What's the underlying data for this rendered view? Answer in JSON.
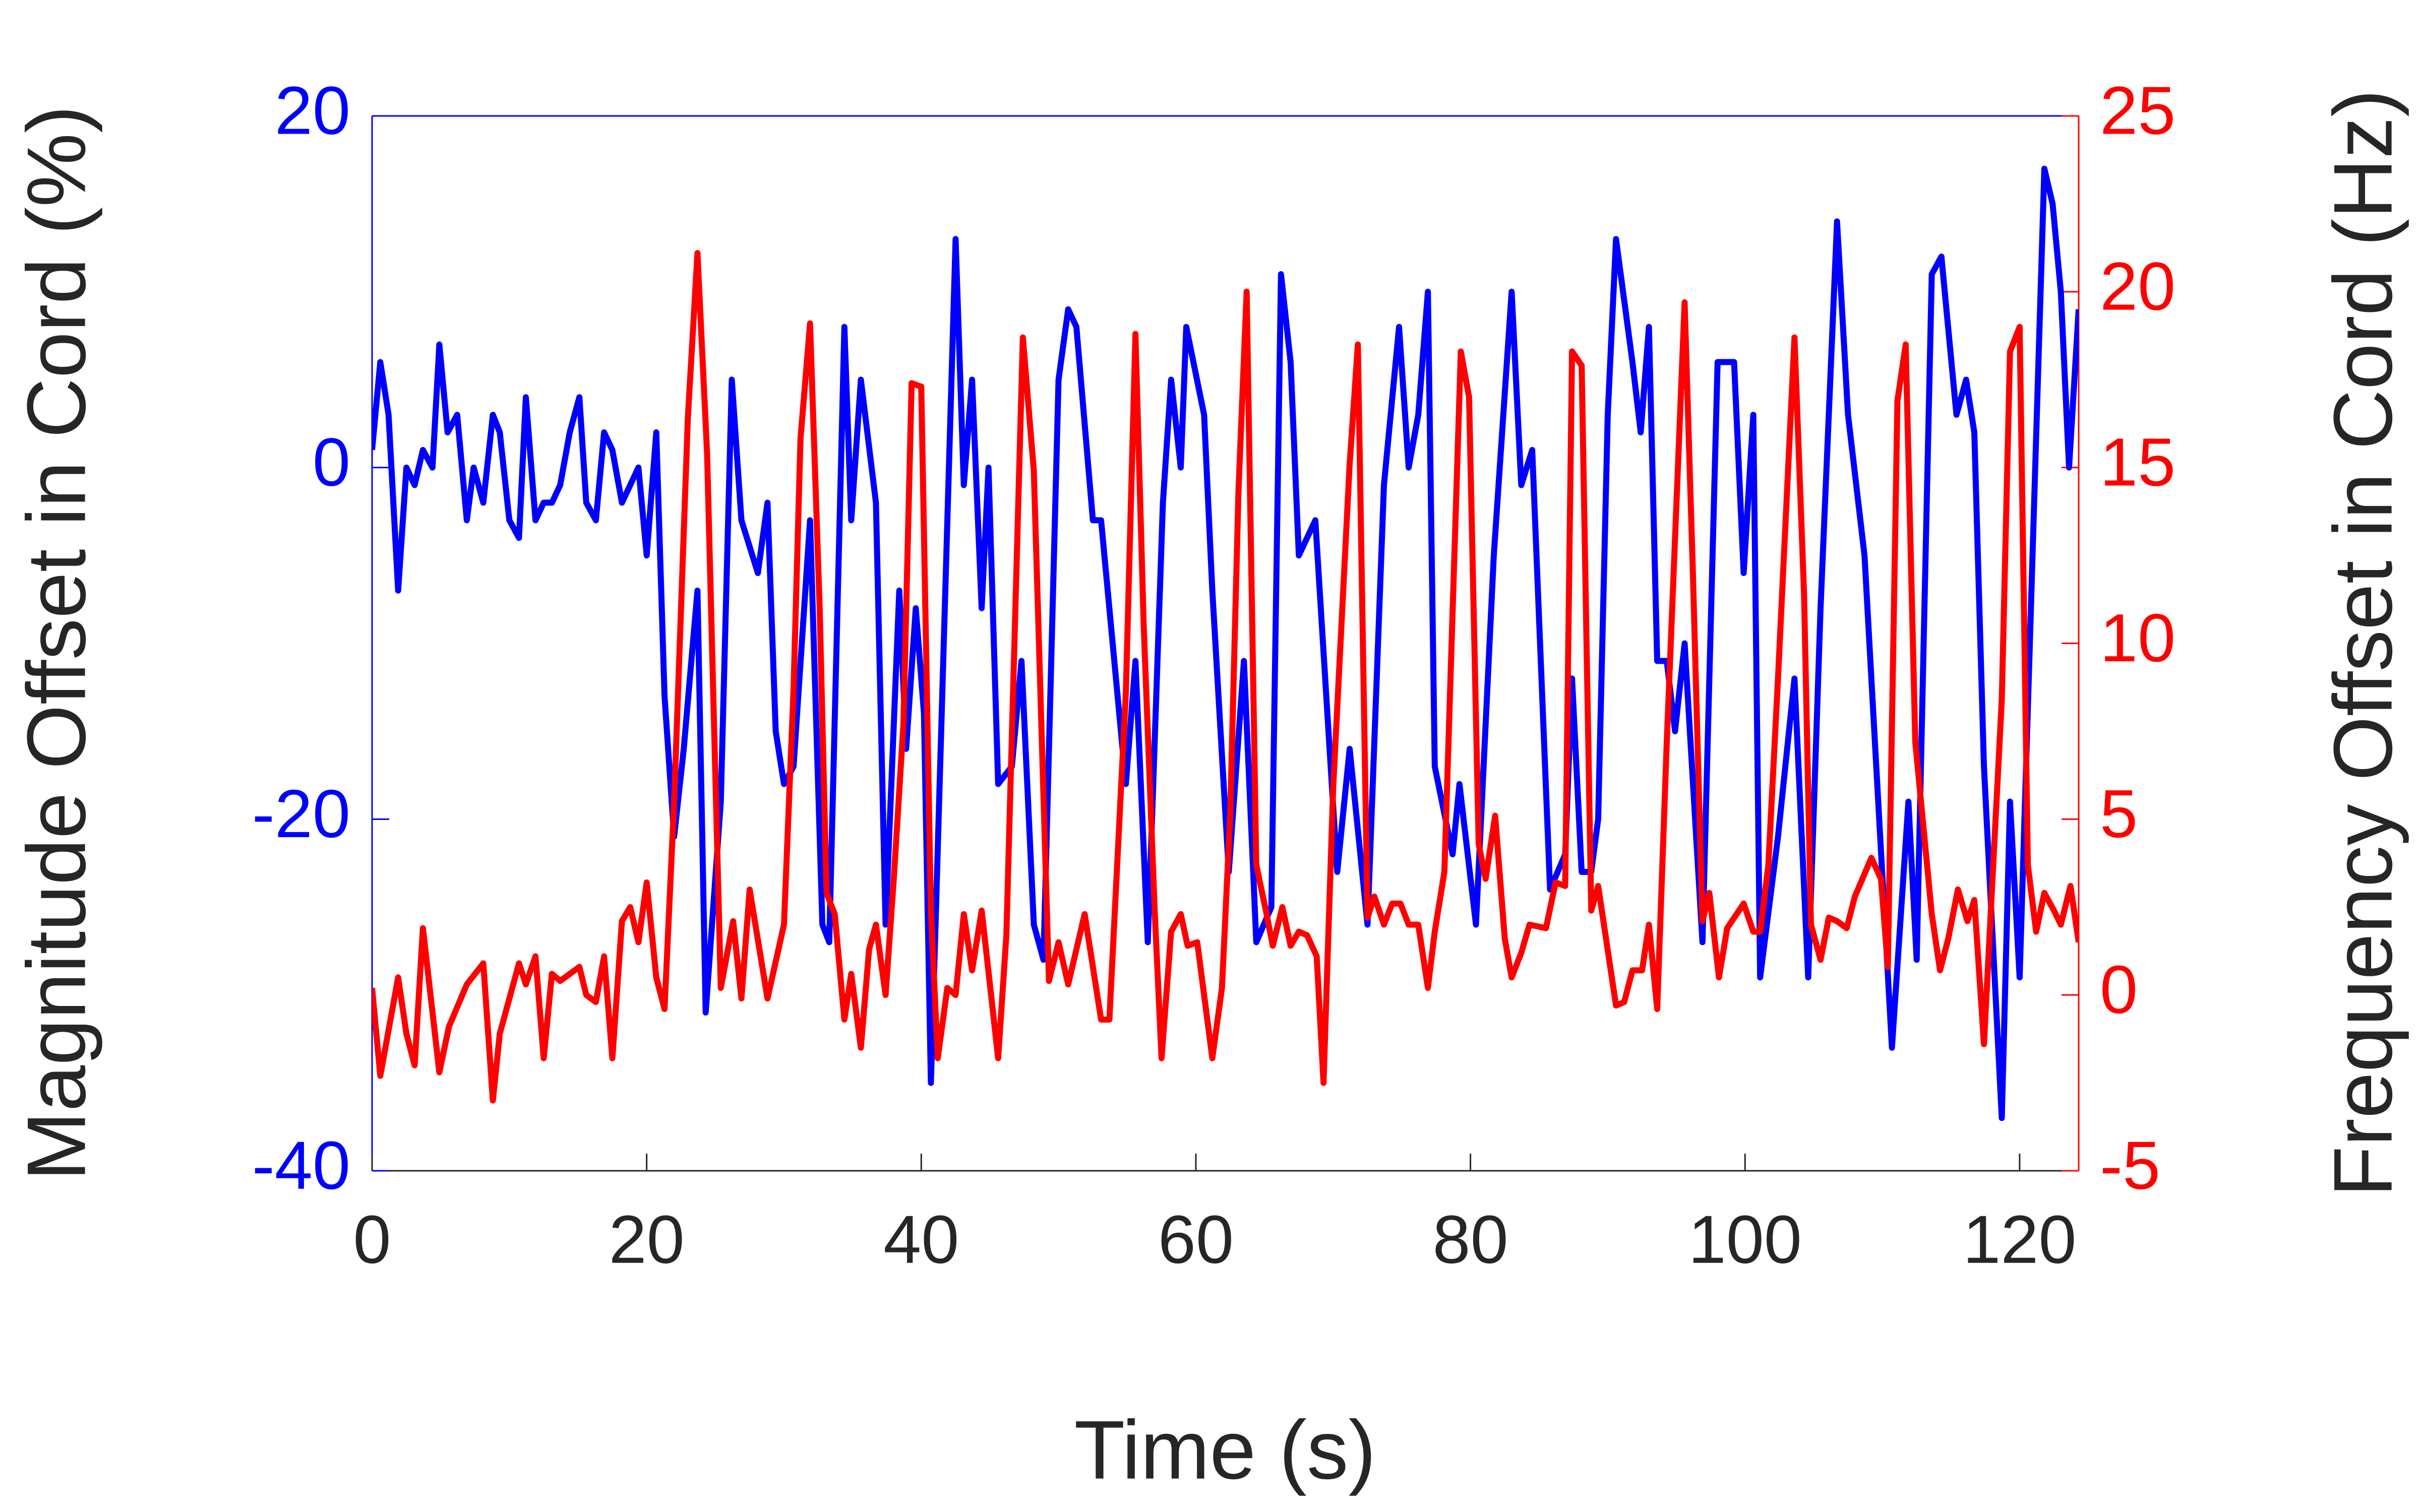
{
  "chart_data": {
    "type": "line",
    "xlabel": "Time (s)",
    "ylabel": "Magnitude Offset in Cord (%)",
    "y2label": "Frequency Offset in Cord (Hz)",
    "xlim": [
      0,
      124.3
    ],
    "xticks": [
      0,
      20,
      40,
      60,
      80,
      100,
      120
    ],
    "ylim": [
      -40,
      20
    ],
    "yticks": [
      -40,
      -20,
      0,
      20
    ],
    "y2lim": [
      -5,
      25
    ],
    "y2ticks": [
      -5,
      0,
      5,
      10,
      15,
      20,
      25
    ],
    "series": [
      {
        "color": "#0000ff",
        "axis": "y",
        "x": [
          0,
          0.6,
          1.2,
          1.9,
          2.5,
          3.1,
          3.7,
          4.4,
          4.9,
          5.5,
          6.2,
          6.9,
          7.4,
          8.1,
          8.8,
          9.3,
          10,
          10.7,
          11.2,
          11.9,
          12.5,
          13.1,
          13.7,
          14.4,
          15.1,
          15.6,
          16.3,
          16.9,
          17.5,
          18.2,
          18.8,
          19.4,
          20,
          20.7,
          21.3,
          22,
          22.7,
          23.7,
          24.3,
          25.4,
          26.2,
          26.9,
          28.1,
          28.8,
          29.4,
          30,
          30.7,
          31.9,
          32.8,
          33.3,
          34.4,
          34.9,
          35.6,
          36.7,
          37.4,
          38.4,
          38.9,
          39.6,
          40.2,
          40.7,
          42.5,
          43.1,
          43.7,
          44.4,
          44.9,
          45.6,
          46.6,
          47.3,
          48.2,
          48.9,
          50,
          50.7,
          51.3,
          52.5,
          53.1,
          54.9,
          55.6,
          56.5,
          57.6,
          58.2,
          58.9,
          59.3,
          60.6,
          61.2,
          62.4,
          63.5,
          64.4,
          65.5,
          66.2,
          66.9,
          67.5,
          68.7,
          70.3,
          71.2,
          72.5,
          73.7,
          74.8,
          75.5,
          76.2,
          76.9,
          77.4,
          78.7,
          79.2,
          80.4,
          81.7,
          83,
          83.7,
          84.5,
          85.8,
          86.9,
          87.4,
          88.1,
          88.8,
          89.3,
          90,
          90.6,
          91.8,
          92.4,
          93,
          93.6,
          94.3,
          94.9,
          95.6,
          96.9,
          98,
          99.2,
          99.9,
          100.6,
          101.1,
          102.4,
          103.6,
          104.6,
          105.5,
          106.7,
          107.5,
          108.7,
          110.7,
          111.9,
          112.5,
          113.6,
          114.3,
          115.4,
          116.1,
          116.7,
          117.4,
          118.7,
          119.3,
          120,
          121.8,
          122.4,
          123,
          123.6,
          124.3
        ],
        "values": [
          1,
          6,
          3,
          -7,
          0,
          -1,
          1,
          0,
          7,
          2,
          3,
          -3,
          0,
          -2,
          3,
          2,
          -3,
          -4,
          4,
          -3,
          -2,
          -2,
          -1,
          2,
          4,
          -2,
          -3,
          2,
          1,
          -2,
          -1,
          0,
          -5,
          2,
          -13,
          -21,
          -16,
          -7,
          -31,
          -19,
          5,
          -3,
          -6,
          -2,
          -15,
          -18,
          -17,
          -3,
          -26,
          -27,
          8,
          -3,
          5,
          -2,
          -26,
          -7,
          -16,
          -8,
          -14,
          -35,
          13,
          -1,
          5,
          -8,
          0,
          -18,
          -17,
          -11,
          -26,
          -28,
          5,
          9,
          8,
          -3,
          -3,
          -18,
          -11,
          -27,
          -2,
          5,
          0,
          8,
          3,
          -7,
          -23,
          -11,
          -27,
          -25,
          11,
          6,
          -5,
          -3,
          -23,
          -16,
          -26,
          -1,
          8,
          0,
          3,
          10,
          -17,
          -22,
          -18,
          -26,
          -5,
          10,
          -1,
          1,
          -24,
          -22,
          -12,
          -23,
          -23,
          -20,
          3,
          13,
          6,
          2,
          8,
          -11,
          -11,
          -15,
          -10,
          -27,
          6,
          6,
          -6,
          3,
          -29,
          -21,
          -12,
          -29,
          -8,
          14,
          3,
          -5,
          -33,
          -19,
          -28,
          11,
          12,
          3,
          5,
          2,
          -17,
          -37,
          -19,
          -29,
          17,
          15,
          10,
          0,
          9
        ]
      },
      {
        "color": "#ff0000",
        "axis": "y2",
        "x": [
          0,
          0.6,
          1.9,
          2.5,
          3.1,
          3.7,
          4.9,
          5.6,
          6.9,
          8.1,
          8.8,
          9.3,
          10.7,
          11.2,
          11.9,
          12.5,
          13.1,
          13.7,
          15.1,
          15.6,
          16.3,
          16.9,
          17.5,
          18.2,
          18.8,
          19.4,
          20,
          20.7,
          21.3,
          22,
          23,
          23.7,
          24.4,
          25.4,
          26.3,
          26.9,
          27.5,
          28.8,
          30,
          30.7,
          31.2,
          31.9,
          32.6,
          33.1,
          33.7,
          34.4,
          34.9,
          35.6,
          36.2,
          36.7,
          37.4,
          38,
          38.7,
          39.3,
          40,
          40.7,
          41.2,
          41.9,
          42.5,
          43.1,
          43.7,
          44.4,
          45.6,
          46.2,
          47.4,
          48.2,
          49.3,
          50,
          50.7,
          51.9,
          53.1,
          53.7,
          54.9,
          55.6,
          56.2,
          57,
          57.5,
          58.2,
          58.9,
          59.4,
          60.1,
          61.2,
          61.9,
          62.5,
          63.1,
          63.7,
          64.4,
          65.1,
          65.6,
          66.3,
          66.9,
          67.5,
          68.1,
          68.8,
          69.3,
          70,
          71.2,
          71.8,
          72.5,
          73,
          73.7,
          74.3,
          74.9,
          75.5,
          76.2,
          76.9,
          77.4,
          78.1,
          79.3,
          79.9,
          80.6,
          81.1,
          81.8,
          82.5,
          83,
          83.7,
          84.3,
          85.5,
          86.2,
          86.9,
          87.4,
          88.1,
          88.8,
          89.3,
          90.6,
          91.2,
          91.8,
          92.5,
          93,
          93.6,
          94.3,
          95.6,
          96.2,
          96.9,
          97.4,
          98.1,
          98.7,
          99.9,
          100.6,
          101.1,
          101.7,
          102.4,
          103.6,
          104.3,
          104.8,
          105.5,
          106.1,
          106.7,
          107.4,
          108,
          109.2,
          109.9,
          110.4,
          111.1,
          111.7,
          112.4,
          113.6,
          114.2,
          114.8,
          115.5,
          116.2,
          116.7,
          117.4,
          118.7,
          119.3,
          120,
          120.6,
          121.2,
          121.8,
          122.5,
          123,
          123.7,
          124.3
        ],
        "values": [
          0.2,
          -2.3,
          0.5,
          -1.1,
          -2,
          1.9,
          -2.2,
          -0.9,
          0.3,
          0.9,
          -3,
          -1.1,
          0.9,
          0.3,
          1.1,
          -1.8,
          0.6,
          0.4,
          0.8,
          0,
          -0.2,
          1.1,
          -1.8,
          2.1,
          2.5,
          1.5,
          3.2,
          0.5,
          -0.4,
          5.5,
          16.4,
          21.1,
          15.4,
          0.2,
          2.1,
          -0.1,
          3,
          -0.1,
          2,
          8.7,
          15.8,
          19.1,
          11,
          2.9,
          2.3,
          -0.7,
          0.6,
          -1.5,
          1.3,
          2,
          0,
          3.3,
          7.7,
          17.4,
          17.3,
          2.4,
          -1.8,
          0.2,
          0,
          2.3,
          0.7,
          2.4,
          -1.8,
          1.7,
          18.7,
          14.9,
          0.4,
          1.5,
          0.3,
          2.3,
          -0.7,
          -0.7,
          8.6,
          18.8,
          10.5,
          2.4,
          -1.8,
          1.8,
          2.3,
          1.4,
          1.5,
          -1.8,
          0.2,
          5.1,
          14.3,
          20,
          3.7,
          2.4,
          1.4,
          2.5,
          1.4,
          1.8,
          1.7,
          1.1,
          -2.5,
          5.9,
          15.1,
          18.5,
          2.2,
          2.8,
          2,
          2.6,
          2.6,
          2,
          2,
          0.2,
          1.8,
          3.5,
          18.3,
          17,
          4.3,
          3.3,
          5.1,
          1.6,
          0.5,
          1.2,
          2,
          1.9,
          3.2,
          3.1,
          18.3,
          17.9,
          2.4,
          3.1,
          -0.3,
          -0.2,
          0.7,
          0.7,
          2,
          -0.4,
          7.2,
          19.7,
          12,
          2.1,
          2.9,
          0.5,
          1.9,
          2.6,
          1.8,
          1.8,
          3.7,
          9,
          18.7,
          11.4,
          2,
          1,
          2.2,
          2.1,
          1.9,
          2.8,
          3.9,
          3.3,
          0.8,
          16.9,
          18.5,
          7.2,
          2.3,
          0.7,
          1.6,
          3,
          2.1,
          2.7,
          -1.4,
          8.4,
          18.3,
          19,
          3.7,
          1.8,
          2.9,
          2.4,
          2,
          3.1,
          1.5
        ]
      }
    ]
  }
}
